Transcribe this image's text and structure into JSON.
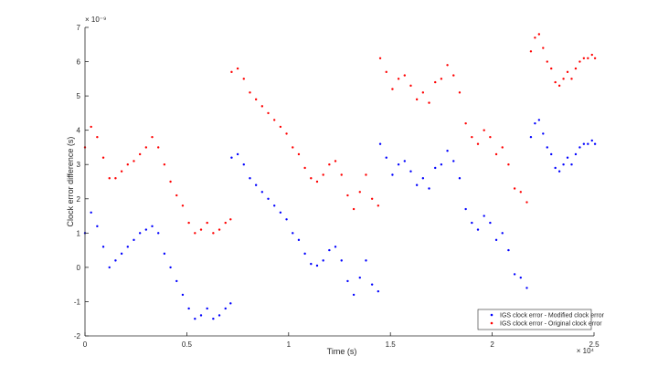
{
  "chart_data": {
    "type": "scatter",
    "title": "",
    "xlabel": "Time (s)",
    "ylabel": "Clock error difference (s)",
    "x_exponent_label": "× 10⁴",
    "y_exponent_label": "× 10⁻⁹",
    "xlim": [
      0,
      25000
    ],
    "ylim": [
      -2e-09,
      7e-09
    ],
    "x_ticks": [
      0,
      5000,
      10000,
      15000,
      20000,
      25000
    ],
    "x_tick_labels": [
      "0",
      "0.5",
      "1",
      "1.5",
      "2",
      "2.5"
    ],
    "y_ticks": [
      -2e-09,
      -1e-09,
      0,
      1e-09,
      2e-09,
      3e-09,
      4e-09,
      5e-09,
      6e-09,
      7e-09
    ],
    "y_tick_labels": [
      "-2",
      "-1",
      "0",
      "1",
      "2",
      "3",
      "4",
      "5",
      "6",
      "7"
    ],
    "grid": false,
    "legend_position": "bottom-right",
    "series": [
      {
        "name": "IGS clock error - Modified clock error",
        "color": "#0000ff",
        "segments": [
          {
            "x": [
              0,
              300,
              600,
              900,
              1200,
              1500,
              1800,
              2100,
              2400,
              2700,
              3000,
              3300,
              3600,
              3900,
              4200,
              4500,
              4800,
              5100,
              5400,
              5700,
              6000,
              6300,
              6600,
              6900,
              7150
            ],
            "y": [
              1e-09,
              1.6e-09,
              1.2e-09,
              6e-10,
              0.0,
              2e-10,
              4e-10,
              6e-10,
              8e-10,
              1e-09,
              1.1e-09,
              1.2e-09,
              1e-09,
              4e-10,
              0.0,
              -4e-10,
              -8e-10,
              -1.2e-09,
              -1.5e-09,
              -1.4e-09,
              -1.2e-09,
              -1.5e-09,
              -1.4e-09,
              -1.2e-09,
              -1.05e-09
            ]
          },
          {
            "x": [
              7200,
              7500,
              7800,
              8100,
              8400,
              8700,
              9000,
              9300,
              9600,
              9900,
              10200,
              10500,
              10800,
              11100,
              11400,
              11700,
              12000,
              12300,
              12600,
              12900,
              13200,
              13500,
              13800,
              14100,
              14400
            ],
            "y": [
              3.2e-09,
              3.3e-09,
              3e-09,
              2.6e-09,
              2.4e-09,
              2.2e-09,
              2e-09,
              1.8e-09,
              1.6e-09,
              1.4e-09,
              1e-09,
              8e-10,
              4e-10,
              1e-10,
              5e-11,
              2e-10,
              5e-10,
              6e-10,
              2e-10,
              -4e-10,
              -8e-10,
              -3e-10,
              2e-10,
              -5e-10,
              -7e-10
            ]
          },
          {
            "x": [
              14500,
              14800,
              15100,
              15400,
              15700,
              16000,
              16300,
              16600,
              16900,
              17200,
              17500,
              17800,
              18100,
              18400,
              18700,
              19000,
              19300,
              19600,
              19900,
              20200,
              20500,
              20800,
              21100,
              21400,
              21700
            ],
            "y": [
              3.6e-09,
              3.2e-09,
              2.7e-09,
              3e-09,
              3.1e-09,
              2.8e-09,
              2.4e-09,
              2.6e-09,
              2.3e-09,
              2.9e-09,
              3e-09,
              3.4e-09,
              3.1e-09,
              2.6e-09,
              1.7e-09,
              1.3e-09,
              1.1e-09,
              1.5e-09,
              1.3e-09,
              8e-10,
              1e-09,
              5e-10,
              -2e-10,
              -3e-10,
              -6e-10
            ]
          },
          {
            "x": [
              21900,
              22100,
              22300,
              22500,
              22700,
              22900,
              23100,
              23300,
              23500,
              23700,
              23900,
              24100,
              24300,
              24500,
              24700,
              24900,
              25050
            ],
            "y": [
              3.8e-09,
              4.2e-09,
              4.3e-09,
              3.9e-09,
              3.5e-09,
              3.3e-09,
              2.9e-09,
              2.8e-09,
              3e-09,
              3.2e-09,
              3e-09,
              3.3e-09,
              3.5e-09,
              3.6e-09,
              3.6e-09,
              3.7e-09,
              3.6e-09
            ]
          }
        ]
      },
      {
        "name": "IGS clock error - Original clock error",
        "color": "#ff0000",
        "segments": [
          {
            "x": [
              0,
              300,
              600,
              900,
              1200,
              1500,
              1800,
              2100,
              2400,
              2700,
              3000,
              3300,
              3600,
              3900,
              4200,
              4500,
              4800,
              5100,
              5400,
              5700,
              6000,
              6300,
              6600,
              6900,
              7150
            ],
            "y": [
              3.5e-09,
              4.1e-09,
              3.8e-09,
              3.2e-09,
              2.6e-09,
              2.6e-09,
              2.8e-09,
              3e-09,
              3.1e-09,
              3.3e-09,
              3.5e-09,
              3.8e-09,
              3.5e-09,
              3e-09,
              2.5e-09,
              2.1e-09,
              1.8e-09,
              1.3e-09,
              1e-09,
              1.1e-09,
              1.3e-09,
              1e-09,
              1.1e-09,
              1.3e-09,
              1.4e-09
            ]
          },
          {
            "x": [
              7200,
              7500,
              7800,
              8100,
              8400,
              8700,
              9000,
              9300,
              9600,
              9900,
              10200,
              10500,
              10800,
              11100,
              11400,
              11700,
              12000,
              12300,
              12600,
              12900,
              13200,
              13500,
              13800,
              14100,
              14400
            ],
            "y": [
              5.7e-09,
              5.8e-09,
              5.5e-09,
              5.1e-09,
              4.9e-09,
              4.7e-09,
              4.5e-09,
              4.3e-09,
              4.1e-09,
              3.9e-09,
              3.5e-09,
              3.3e-09,
              2.9e-09,
              2.6e-09,
              2.5e-09,
              2.7e-09,
              3e-09,
              3.1e-09,
              2.7e-09,
              2.1e-09,
              1.7e-09,
              2.2e-09,
              2.7e-09,
              2e-09,
              1.8e-09
            ]
          },
          {
            "x": [
              14500,
              14800,
              15100,
              15400,
              15700,
              16000,
              16300,
              16600,
              16900,
              17200,
              17500,
              17800,
              18100,
              18400,
              18700,
              19000,
              19300,
              19600,
              19900,
              20200,
              20500,
              20800,
              21100,
              21400,
              21700
            ],
            "y": [
              6.1e-09,
              5.7e-09,
              5.2e-09,
              5.5e-09,
              5.6e-09,
              5.3e-09,
              4.9e-09,
              5.1e-09,
              4.8e-09,
              5.4e-09,
              5.5e-09,
              5.9e-09,
              5.6e-09,
              5.1e-09,
              4.2e-09,
              3.8e-09,
              3.6e-09,
              4e-09,
              3.8e-09,
              3.3e-09,
              3.5e-09,
              3e-09,
              2.3e-09,
              2.2e-09,
              1.9e-09
            ]
          },
          {
            "x": [
              21900,
              22100,
              22300,
              22500,
              22700,
              22900,
              23100,
              23300,
              23500,
              23700,
              23900,
              24100,
              24300,
              24500,
              24700,
              24900,
              25050
            ],
            "y": [
              6.3e-09,
              6.7e-09,
              6.8e-09,
              6.4e-09,
              6e-09,
              5.8e-09,
              5.4e-09,
              5.3e-09,
              5.5e-09,
              5.7e-09,
              5.5e-09,
              5.8e-09,
              6e-09,
              6.1e-09,
              6.1e-09,
              6.2e-09,
              6.1e-09
            ]
          }
        ]
      }
    ]
  }
}
